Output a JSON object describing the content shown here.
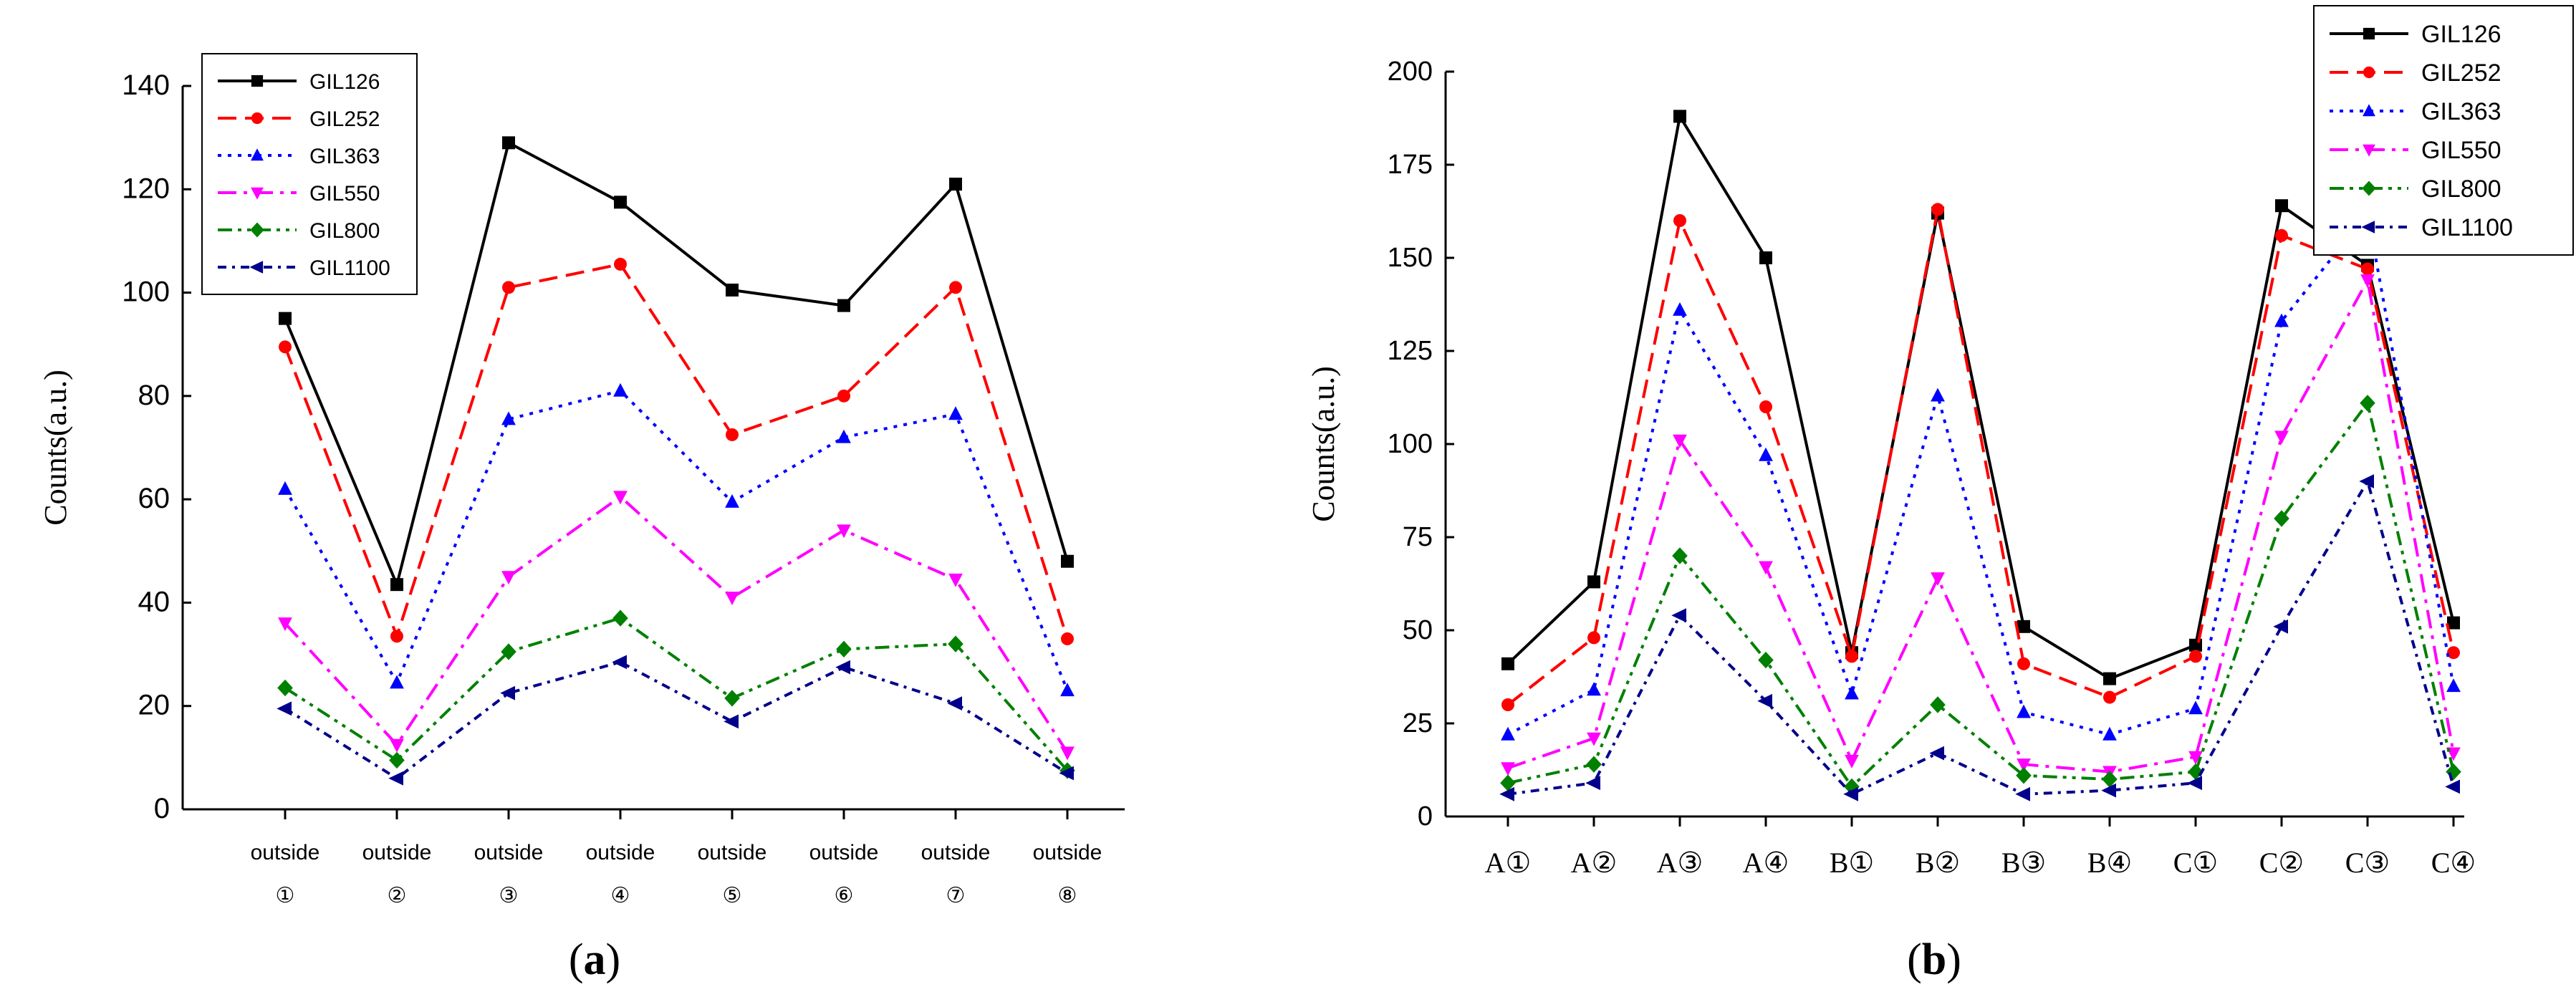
{
  "chart_data": [
    {
      "type": "line",
      "panel_label": {
        "open": "(",
        "letter": "a",
        "close": ")"
      },
      "ylabel": "Counts(a.u.)",
      "xlabel": "",
      "ylim": [
        0,
        140
      ],
      "yticks": [
        0,
        20,
        40,
        60,
        80,
        100,
        120,
        140
      ],
      "legend_position": "top-left",
      "grid": false,
      "categories": [
        {
          "line1": "outside",
          "line2": "①"
        },
        {
          "line1": "outside",
          "line2": "②"
        },
        {
          "line1": "outside",
          "line2": "③"
        },
        {
          "line1": "outside",
          "line2": "④"
        },
        {
          "line1": "outside",
          "line2": "⑤"
        },
        {
          "line1": "outside",
          "line2": "⑥"
        },
        {
          "line1": "outside",
          "line2": "⑦"
        },
        {
          "line1": "outside",
          "line2": "⑧"
        }
      ],
      "series": [
        {
          "name": "GIL126",
          "color": "#000000",
          "dash": "solid",
          "marker": "square",
          "values": [
            95,
            43.5,
            129,
            117.5,
            100.5,
            97.5,
            121,
            48
          ]
        },
        {
          "name": "GIL252",
          "color": "#ff0000",
          "dash": "dash",
          "marker": "circle",
          "values": [
            89.5,
            33.5,
            101,
            105.5,
            72.5,
            80,
            101,
            33
          ]
        },
        {
          "name": "GIL363",
          "color": "#0000ff",
          "dash": "dot",
          "marker": "triangle-up",
          "values": [
            62,
            24.5,
            75.5,
            81,
            59.5,
            72,
            76.5,
            23
          ]
        },
        {
          "name": "GIL550",
          "color": "#ff00ff",
          "dash": "dashdot",
          "marker": "triangle-down",
          "values": [
            36,
            12.5,
            45,
            60.5,
            41,
            54,
            44.5,
            11
          ]
        },
        {
          "name": "GIL800",
          "color": "#008000",
          "dash": "dashdotdot",
          "marker": "diamond",
          "values": [
            23.5,
            9.5,
            30.5,
            37,
            21.5,
            31,
            32,
            7.5
          ]
        },
        {
          "name": "GIL1100",
          "color": "#00008b",
          "dash": "shortdashdot",
          "marker": "triangle-left",
          "values": [
            19.5,
            6,
            22.5,
            28.5,
            17,
            27.5,
            20.5,
            7
          ]
        }
      ]
    },
    {
      "type": "line",
      "panel_label": {
        "open": "(",
        "letter": "b",
        "close": ")"
      },
      "ylabel": "Counts(a.u.)",
      "xlabel": "",
      "ylim": [
        0,
        200
      ],
      "yticks": [
        0,
        25,
        50,
        75,
        100,
        125,
        150,
        175,
        200
      ],
      "legend_position": "top-right",
      "grid": false,
      "categories": [
        "A①",
        "A②",
        "A③",
        "A④",
        "B①",
        "B②",
        "B③",
        "B④",
        "C①",
        "C②",
        "C③",
        "C④"
      ],
      "series": [
        {
          "name": "GIL126",
          "color": "#000000",
          "dash": "solid",
          "marker": "square",
          "values": [
            41,
            63,
            188,
            150,
            44,
            162,
            51,
            37,
            46,
            164,
            148,
            52
          ]
        },
        {
          "name": "GIL252",
          "color": "#ff0000",
          "dash": "dash",
          "marker": "circle",
          "values": [
            30,
            48,
            160,
            110,
            43,
            163,
            41,
            32,
            43,
            156,
            147,
            44
          ]
        },
        {
          "name": "GIL363",
          "color": "#0000ff",
          "dash": "dot",
          "marker": "triangle-up",
          "values": [
            22,
            34,
            136,
            97,
            33,
            113,
            28,
            22,
            29,
            133,
            162,
            35
          ]
        },
        {
          "name": "GIL550",
          "color": "#ff00ff",
          "dash": "dashdot",
          "marker": "triangle-down",
          "values": [
            13,
            21,
            101,
            67,
            15,
            64,
            14,
            12,
            16,
            102,
            144,
            17
          ]
        },
        {
          "name": "GIL800",
          "color": "#008000",
          "dash": "dashdotdot",
          "marker": "diamond",
          "values": [
            9,
            14,
            70,
            42,
            8,
            30,
            11,
            10,
            12,
            80,
            111,
            12
          ]
        },
        {
          "name": "GIL1100",
          "color": "#00008b",
          "dash": "shortdashdot",
          "marker": "triangle-left",
          "values": [
            6,
            9,
            54,
            31,
            6,
            17,
            6,
            7,
            9,
            51,
            90,
            8
          ]
        }
      ]
    }
  ]
}
